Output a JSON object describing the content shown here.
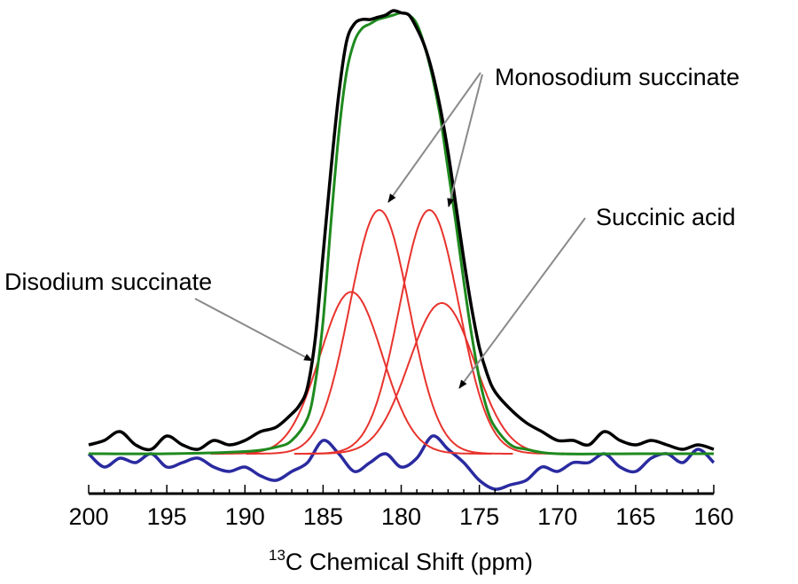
{
  "chart_data": {
    "type": "line",
    "title": "",
    "xlabel": {
      "superscript": "13",
      "text": "C Chemical Shift (ppm)"
    },
    "ylabel": "",
    "xlim": [
      200,
      160
    ],
    "x_reversed": true,
    "ylim": [
      -0.12,
      1.0
    ],
    "grid": false,
    "legend": "none",
    "x_ticks": [
      200,
      195,
      190,
      185,
      180,
      175,
      170,
      165,
      160
    ],
    "x_minor_step": 1,
    "colors": {
      "experimental": "#000000",
      "fit": "#1e8a1e",
      "components": "#e8332d",
      "residual": "#2a2aa0",
      "arrow": "#8a8a8a"
    },
    "series": [
      {
        "role": "experimental",
        "color": "#000000",
        "x": [
          200,
          199,
          198,
          197,
          196,
          195,
          194,
          193,
          192,
          191,
          190,
          189,
          188,
          187,
          186.5,
          186,
          185.5,
          185,
          184.5,
          184,
          183.5,
          183,
          182.5,
          182,
          181.5,
          181,
          180.5,
          180,
          179.5,
          179,
          178.5,
          178,
          177.5,
          177,
          176.5,
          176,
          175.5,
          175,
          174.5,
          174,
          173,
          172,
          171,
          170,
          169,
          168,
          167,
          166,
          165,
          164,
          163,
          162,
          161,
          160
        ],
        "y": [
          0.02,
          0.03,
          0.05,
          0.02,
          0.01,
          0.04,
          0.02,
          0.01,
          0.03,
          0.02,
          0.03,
          0.05,
          0.06,
          0.09,
          0.11,
          0.15,
          0.26,
          0.45,
          0.64,
          0.81,
          0.93,
          0.97,
          0.98,
          0.98,
          0.985,
          0.99,
          1.0,
          0.995,
          0.99,
          0.96,
          0.92,
          0.86,
          0.78,
          0.68,
          0.56,
          0.44,
          0.33,
          0.24,
          0.18,
          0.14,
          0.1,
          0.07,
          0.05,
          0.03,
          0.03,
          0.02,
          0.05,
          0.03,
          0.02,
          0.03,
          0.02,
          0.01,
          0.02,
          0.01
        ]
      },
      {
        "role": "fit",
        "color": "#1e8a1e",
        "x": [
          200,
          195,
          190,
          188,
          187,
          186,
          185.5,
          185,
          184.5,
          184,
          183.5,
          183,
          182.5,
          182,
          181.5,
          181,
          180.5,
          180,
          179.5,
          179,
          178.5,
          178,
          177.5,
          177,
          176.5,
          176,
          175.5,
          175,
          174.5,
          174,
          173,
          172,
          170,
          165,
          160
        ],
        "y": [
          0.0,
          0.0,
          0.005,
          0.015,
          0.03,
          0.08,
          0.16,
          0.3,
          0.52,
          0.72,
          0.86,
          0.93,
          0.96,
          0.97,
          0.98,
          0.985,
          0.99,
          0.995,
          0.99,
          0.97,
          0.92,
          0.85,
          0.76,
          0.64,
          0.52,
          0.39,
          0.27,
          0.17,
          0.1,
          0.06,
          0.02,
          0.01,
          0.0,
          0.0,
          0.0
        ]
      },
      {
        "role": "component",
        "color": "#e8332d",
        "peaks": [
          {
            "center": 183.2,
            "height": 0.365,
            "width": 2.0
          },
          {
            "center": 181.4,
            "height": 0.55,
            "width": 1.9
          },
          {
            "center": 178.2,
            "height": 0.55,
            "width": 1.9
          },
          {
            "center": 177.4,
            "height": 0.34,
            "width": 2.1
          }
        ]
      },
      {
        "role": "residual",
        "color": "#2a2aa0",
        "x": [
          200,
          199,
          198,
          197,
          196,
          195,
          194,
          193,
          192,
          191,
          190,
          189,
          188,
          187,
          186,
          185,
          184,
          183,
          182,
          181,
          180,
          179,
          178,
          177,
          176,
          175,
          174,
          173,
          172,
          171,
          170,
          169,
          168,
          167,
          166,
          165,
          164,
          163,
          162,
          161,
          160
        ],
        "y": [
          0.0,
          -0.03,
          -0.01,
          -0.02,
          0.0,
          -0.03,
          -0.02,
          -0.01,
          -0.03,
          -0.04,
          -0.03,
          -0.05,
          -0.06,
          -0.04,
          -0.02,
          0.03,
          0.0,
          -0.04,
          -0.02,
          0.0,
          -0.03,
          -0.01,
          0.04,
          0.01,
          -0.02,
          -0.06,
          -0.08,
          -0.07,
          -0.06,
          -0.03,
          -0.04,
          -0.02,
          -0.02,
          0.0,
          -0.03,
          -0.04,
          -0.01,
          0.0,
          -0.02,
          0.01,
          -0.02
        ]
      }
    ],
    "annotations": [
      {
        "text": "Monosodium succinate"
      },
      {
        "text": "Succinic acid"
      },
      {
        "text": "Disodium succinate"
      }
    ]
  }
}
